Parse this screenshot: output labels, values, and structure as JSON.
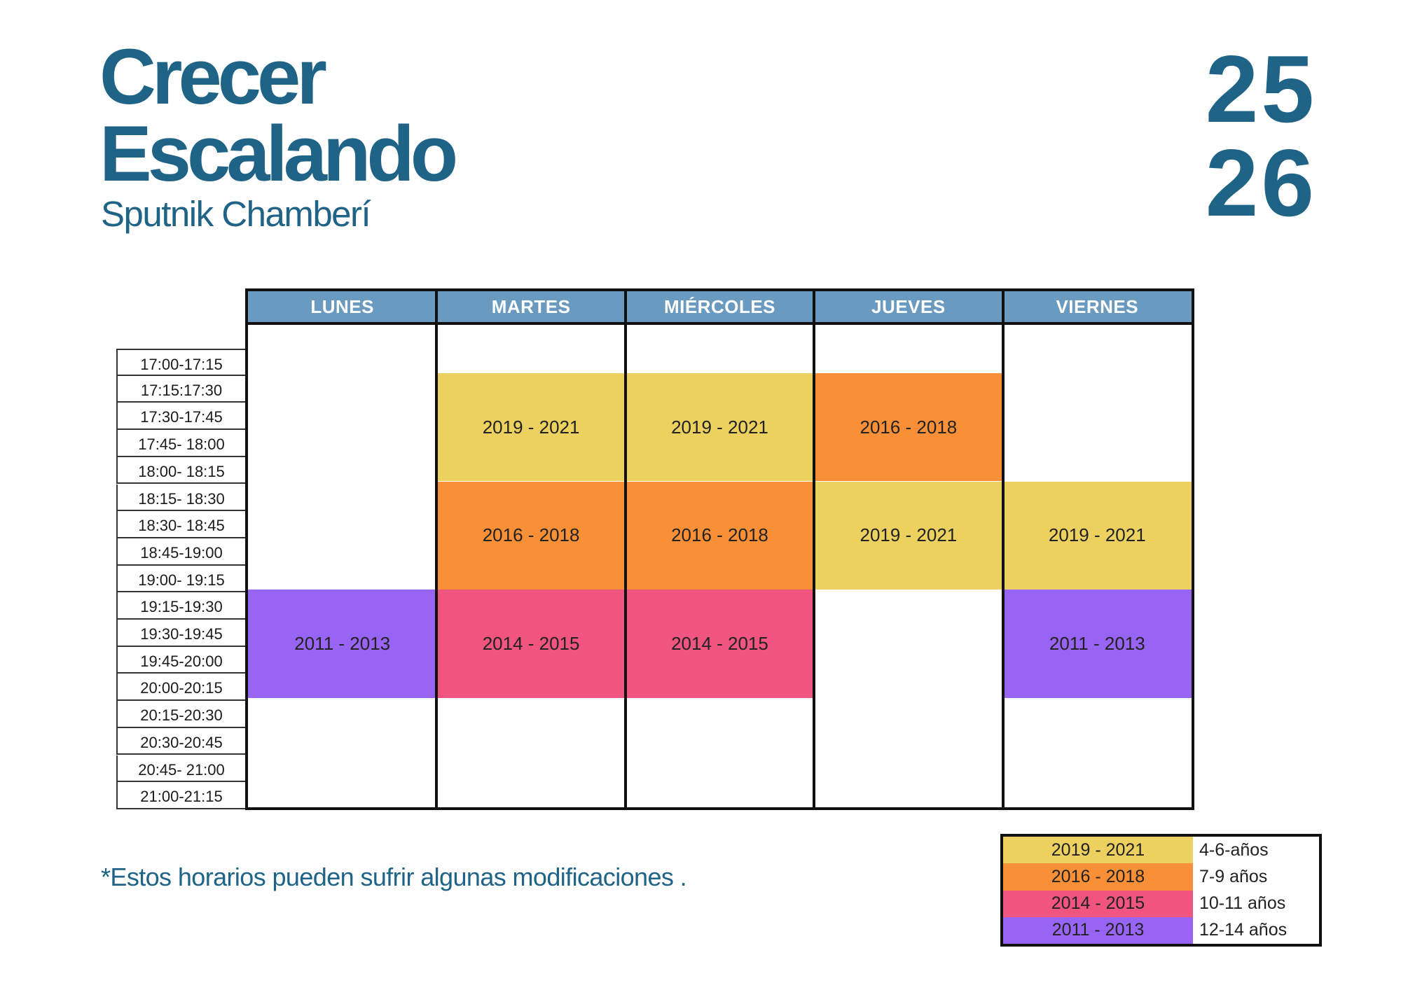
{
  "header": {
    "title_line1": "Crecer",
    "title_line2": "Escalando",
    "subtitle": "Sputnik Chamberí",
    "season_line1": "25",
    "season_line2": "26"
  },
  "schedule": {
    "days": [
      "LUNES",
      "MARTES",
      "MIÉRCOLES",
      "JUEVES",
      "VIERNES"
    ],
    "time_slots": [
      "17:00-17:15",
      "17:15:17:30",
      "17:30-17:45",
      "17:45- 18:00",
      "18:00- 18:15",
      "18:15- 18:30",
      "18:30- 18:45",
      "18:45-19:00",
      "19:00- 19:15",
      "19:15-19:30",
      "19:30-19:45",
      "19:45-20:00",
      "20:00-20:15",
      "20:15-20:30",
      "20:30-20:45",
      "20:45- 21:00",
      "21:00-21:15"
    ],
    "classes": [
      {
        "day": 0,
        "start": "19:15",
        "end": "20:15",
        "label": "2011 - 2013"
      },
      {
        "day": 1,
        "start": "17:15",
        "end": "18:15",
        "label": "2019 - 2021"
      },
      {
        "day": 1,
        "start": "18:15",
        "end": "19:15",
        "label": "2016 - 2018"
      },
      {
        "day": 1,
        "start": "19:15",
        "end": "20:15",
        "label": "2014 - 2015"
      },
      {
        "day": 2,
        "start": "17:15",
        "end": "18:15",
        "label": "2019 - 2021"
      },
      {
        "day": 2,
        "start": "18:15",
        "end": "19:15",
        "label": "2016 - 2018"
      },
      {
        "day": 2,
        "start": "19:15",
        "end": "20:15",
        "label": "2014 - 2015"
      },
      {
        "day": 3,
        "start": "17:15",
        "end": "18:15",
        "label": "2016 - 2018"
      },
      {
        "day": 3,
        "start": "18:15",
        "end": "19:15",
        "label": "2019 - 2021"
      },
      {
        "day": 4,
        "start": "18:15",
        "end": "19:15",
        "label": "2019 - 2021"
      },
      {
        "day": 4,
        "start": "19:15",
        "end": "20:15",
        "label": "2011 - 2013"
      }
    ]
  },
  "footnote": "*Estos horarios pueden sufrir algunas modificaciones .",
  "legend": [
    {
      "years": "2019 - 2021",
      "ages": "4-6-años",
      "color": "#ecd060"
    },
    {
      "years": "2016 - 2018",
      "ages": "7-9 años",
      "color": "#f99037"
    },
    {
      "years": "2014 - 2015",
      "ages": "10-11 años",
      "color": "#f05580"
    },
    {
      "years": "2011 - 2013",
      "ages": "12-14 años",
      "color": "#9864f4"
    }
  ],
  "colors": {
    "brand_blue": "#1f6386",
    "header_blue": "#6a9ac0"
  }
}
